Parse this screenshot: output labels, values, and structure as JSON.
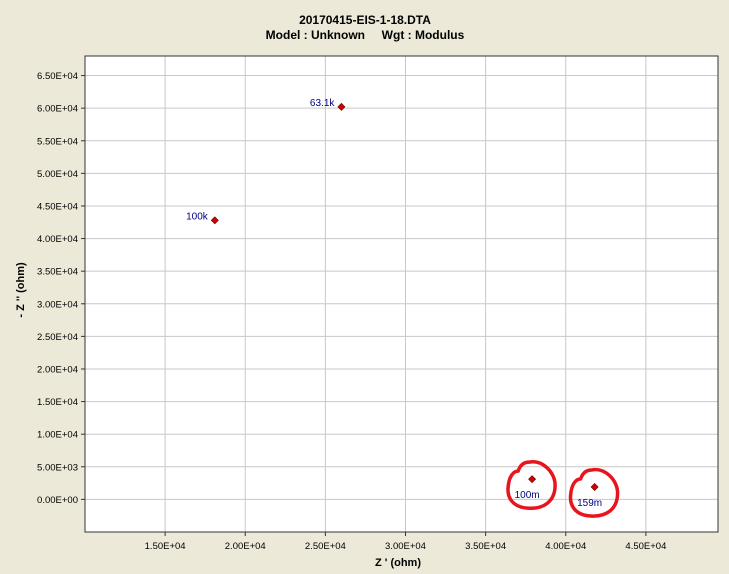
{
  "chart_data": {
    "type": "scatter",
    "title": "20170415-EIS-1-18.DTA",
    "subtitle": "Model : Unknown     Wgt : Modulus",
    "xlabel": "Z ' (ohm)",
    "ylabel": "- Z '' (ohm)",
    "xlim": [
      10000,
      49500
    ],
    "ylim": [
      -5000,
      68000
    ],
    "x_ticks": [
      15000,
      20000,
      25000,
      30000,
      35000,
      40000,
      45000
    ],
    "x_tick_labels": [
      "1.50E+04",
      "2.00E+04",
      "2.50E+04",
      "3.00E+04",
      "3.50E+04",
      "4.00E+04",
      "4.50E+04"
    ],
    "y_ticks": [
      0,
      5000,
      10000,
      15000,
      20000,
      25000,
      30000,
      35000,
      40000,
      45000,
      50000,
      55000,
      60000,
      65000
    ],
    "y_tick_labels": [
      "0.00E+00",
      "5.00E+03",
      "1.00E+04",
      "1.50E+04",
      "2.00E+04",
      "2.50E+04",
      "3.00E+04",
      "3.50E+04",
      "4.00E+04",
      "4.50E+04",
      "5.00E+04",
      "5.50E+04",
      "6.00E+04",
      "6.50E+04"
    ],
    "grid": true,
    "points": [
      {
        "x": 18100,
        "y": 42800,
        "label": "100k"
      },
      {
        "x": 26000,
        "y": 60200,
        "label": "63.1k"
      },
      {
        "x": 37900,
        "y": 3100,
        "label": "100m"
      },
      {
        "x": 41800,
        "y": 1900,
        "label": "159m"
      }
    ],
    "annotations": [
      {
        "type": "hand-drawn circle",
        "around": "100m"
      },
      {
        "type": "hand-drawn circle",
        "around": "159m"
      }
    ],
    "colors": {
      "background": "#ece9d8",
      "plot_area": "#ffffff",
      "grid": "#c8c8c8",
      "marker": "#d40000",
      "label": "#00007f",
      "annotation": "#e8141e"
    }
  }
}
